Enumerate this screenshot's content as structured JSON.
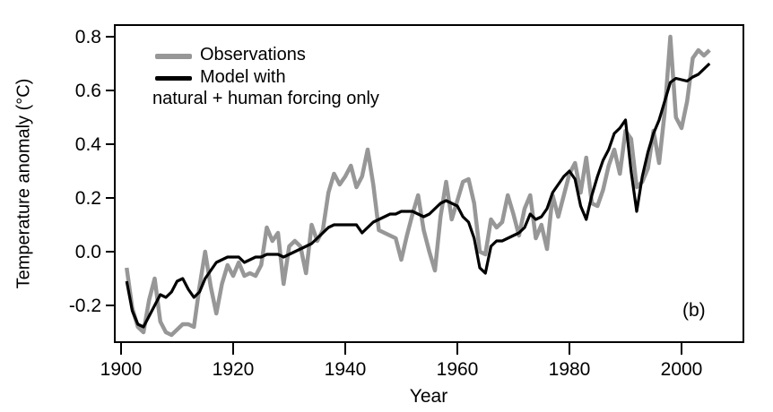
{
  "figure": {
    "panel_label": "(b)",
    "background": "#ffffff"
  },
  "chart_data": {
    "type": "line",
    "title": "",
    "xlabel": "Year",
    "ylabel": "Temperature anomaly (°C)",
    "grid": false,
    "legend_position": "top-left-inside",
    "xlim": [
      1899,
      2011
    ],
    "ylim": [
      -0.34,
      0.84
    ],
    "x_ticks": [
      {
        "label": "1900",
        "value": 1900
      },
      {
        "label": "1920",
        "value": 1920
      },
      {
        "label": "1940",
        "value": 1940
      },
      {
        "label": "1960",
        "value": 1960
      },
      {
        "label": "1980",
        "value": 1980
      },
      {
        "label": "2000",
        "value": 2000
      }
    ],
    "y_ticks": [
      {
        "label": "0.8",
        "value": 0.8
      },
      {
        "label": "0.6",
        "value": 0.6
      },
      {
        "label": "0.4",
        "value": 0.4
      },
      {
        "label": "0.2",
        "value": 0.2
      },
      {
        "label": "0.0",
        "value": 0.0
      },
      {
        "label": "-0.2",
        "value": -0.2
      }
    ],
    "legend": [
      {
        "label": "Observations",
        "swatch_color": "#979797"
      },
      {
        "label": "Model with",
        "label_line2": "natural + human forcing only",
        "swatch_color": "#000000"
      }
    ],
    "x": [
      1901,
      1902,
      1903,
      1904,
      1905,
      1906,
      1907,
      1908,
      1909,
      1910,
      1911,
      1912,
      1913,
      1914,
      1915,
      1916,
      1917,
      1918,
      1919,
      1920,
      1921,
      1922,
      1923,
      1924,
      1925,
      1926,
      1927,
      1928,
      1929,
      1930,
      1931,
      1932,
      1933,
      1934,
      1935,
      1936,
      1937,
      1938,
      1939,
      1940,
      1941,
      1942,
      1943,
      1944,
      1945,
      1946,
      1947,
      1948,
      1949,
      1950,
      1951,
      1952,
      1953,
      1954,
      1955,
      1956,
      1957,
      1958,
      1959,
      1960,
      1961,
      1962,
      1963,
      1964,
      1965,
      1966,
      1967,
      1968,
      1969,
      1970,
      1971,
      1972,
      1973,
      1974,
      1975,
      1976,
      1977,
      1978,
      1979,
      1980,
      1981,
      1982,
      1983,
      1984,
      1985,
      1986,
      1987,
      1988,
      1989,
      1990,
      1991,
      1992,
      1993,
      1994,
      1995,
      1996,
      1997,
      1998,
      1999,
      2000,
      2001,
      2002,
      2003,
      2004,
      2005
    ],
    "series": [
      {
        "name": "Observations",
        "color": "#979797",
        "stroke_width": 4.5,
        "values": [
          -0.06,
          -0.21,
          -0.28,
          -0.3,
          -0.18,
          -0.1,
          -0.26,
          -0.3,
          -0.31,
          -0.29,
          -0.27,
          -0.27,
          -0.28,
          -0.13,
          0.0,
          -0.13,
          -0.23,
          -0.12,
          -0.05,
          -0.09,
          -0.04,
          -0.09,
          -0.08,
          -0.09,
          -0.05,
          0.09,
          0.04,
          0.07,
          -0.12,
          0.02,
          0.04,
          0.02,
          -0.08,
          0.1,
          0.04,
          0.08,
          0.22,
          0.29,
          0.25,
          0.28,
          0.32,
          0.24,
          0.28,
          0.38,
          0.25,
          0.08,
          0.07,
          0.06,
          0.05,
          -0.03,
          0.06,
          0.14,
          0.21,
          0.08,
          0.0,
          -0.07,
          0.13,
          0.26,
          0.12,
          0.19,
          0.26,
          0.27,
          0.18,
          0.0,
          -0.01,
          0.12,
          0.09,
          0.11,
          0.21,
          0.14,
          0.06,
          0.16,
          0.21,
          0.05,
          0.1,
          0.01,
          0.21,
          0.13,
          0.21,
          0.29,
          0.33,
          0.22,
          0.35,
          0.18,
          0.17,
          0.23,
          0.32,
          0.38,
          0.29,
          0.45,
          0.42,
          0.24,
          0.26,
          0.31,
          0.45,
          0.33,
          0.52,
          0.8,
          0.5,
          0.46,
          0.56,
          0.72,
          0.75,
          0.73,
          0.75
        ]
      },
      {
        "name": "Model with natural + human forcing only",
        "color": "#000000",
        "stroke_width": 3.2,
        "values": [
          -0.11,
          -0.22,
          -0.27,
          -0.28,
          -0.24,
          -0.2,
          -0.16,
          -0.17,
          -0.15,
          -0.11,
          -0.1,
          -0.14,
          -0.17,
          -0.15,
          -0.1,
          -0.07,
          -0.04,
          -0.03,
          -0.02,
          -0.02,
          -0.02,
          -0.04,
          -0.03,
          -0.02,
          -0.02,
          -0.01,
          -0.01,
          -0.01,
          -0.02,
          -0.01,
          0.0,
          0.01,
          0.02,
          0.03,
          0.05,
          0.07,
          0.09,
          0.1,
          0.1,
          0.1,
          0.1,
          0.1,
          0.07,
          0.09,
          0.11,
          0.12,
          0.13,
          0.14,
          0.14,
          0.15,
          0.15,
          0.15,
          0.14,
          0.13,
          0.14,
          0.16,
          0.18,
          0.19,
          0.18,
          0.17,
          0.13,
          0.11,
          0.05,
          -0.06,
          -0.08,
          0.02,
          0.04,
          0.04,
          0.05,
          0.06,
          0.07,
          0.09,
          0.14,
          0.12,
          0.13,
          0.16,
          0.22,
          0.25,
          0.28,
          0.3,
          0.27,
          0.17,
          0.12,
          0.21,
          0.28,
          0.34,
          0.38,
          0.44,
          0.46,
          0.49,
          0.3,
          0.15,
          0.28,
          0.37,
          0.44,
          0.49,
          0.56,
          0.63,
          0.645,
          0.64,
          0.635,
          0.65,
          0.66,
          0.68,
          0.7
        ]
      }
    ]
  }
}
